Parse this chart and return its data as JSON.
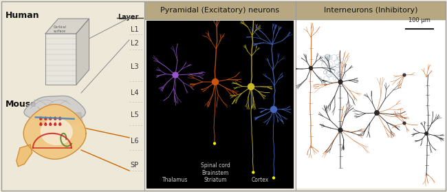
{
  "background_color": "#ede8d8",
  "border_color": "#999999",
  "left_panel": {
    "human_label": "Human",
    "mouse_label": "Mouse",
    "human_label_fontsize": 9,
    "mouse_label_fontsize": 9,
    "layer_header": "Layer",
    "layer_labels": [
      "L1",
      "L2",
      "L3",
      "L4",
      "L5",
      "L6",
      "SP"
    ],
    "layer_label_fontsize": 7,
    "orange_color": "#cc6600",
    "gray_color": "#888888",
    "dash_color": "#aaaaaa"
  },
  "middle_panel": {
    "title": "Pyramidal (Excitatory) neurons",
    "title_bg": "#b8a882",
    "title_color": "#111111",
    "title_fontsize": 8,
    "image_bg": "#000000",
    "thalamus_color": "#9955cc",
    "spinal_color": "#cc5511",
    "cortex_yellow_color": "#ccbb22",
    "cortex_blue_color": "#4466bb",
    "label_fontsize": 5.5,
    "label_color": "#cccccc"
  },
  "right_panel": {
    "title": "Interneurons (Inhibitory)",
    "title_bg": "#b8a882",
    "title_color": "#111111",
    "title_fontsize": 8,
    "content_bg": "#ffffff",
    "dendrite_color_dark": "#222222",
    "dendrite_color_orange": "#cc6622",
    "ball_color": "#8899aa",
    "scale_bar_label": "100 μm",
    "scale_bar_fontsize": 6
  }
}
